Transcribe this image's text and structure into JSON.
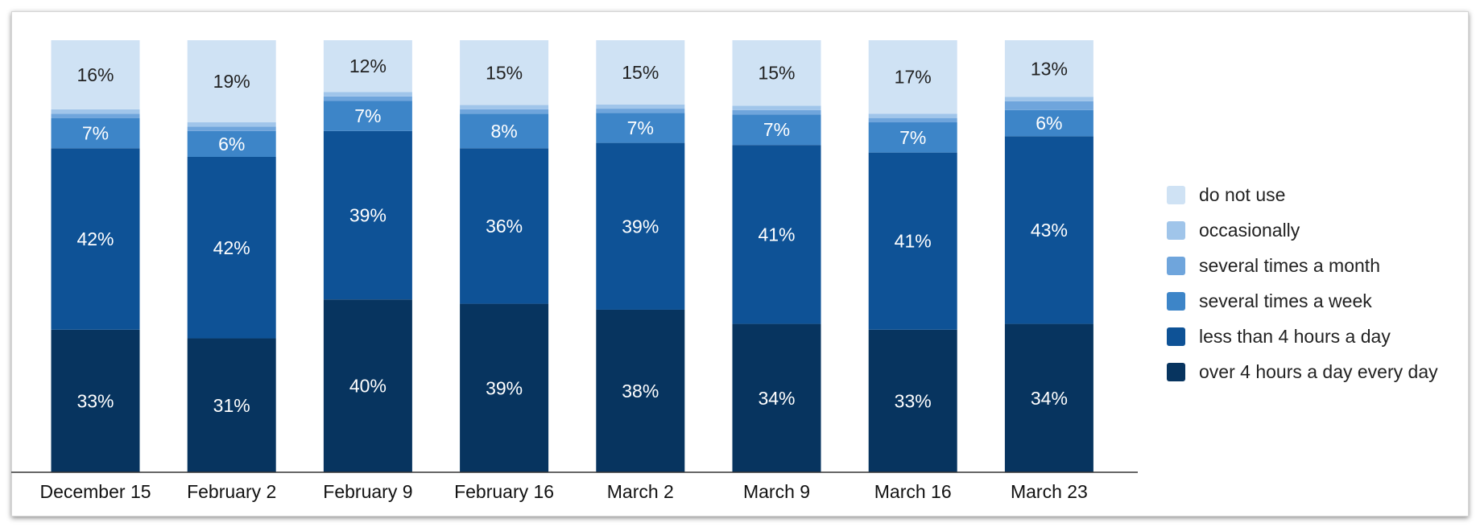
{
  "chart_data": {
    "type": "bar",
    "stacked": true,
    "normalized": true,
    "categories": [
      "December 15",
      "February 2",
      "February 9",
      "February 16",
      "March 2",
      "March 9",
      "March 16",
      "March 23"
    ],
    "series": [
      {
        "name": "over 4 hours a day every day",
        "color": "#07345f",
        "values": [
          33,
          31,
          40,
          39,
          38,
          34,
          33,
          34
        ]
      },
      {
        "name": "less than 4 hours a day",
        "color": "#0e5296",
        "values": [
          42,
          42,
          39,
          36,
          39,
          41,
          41,
          43
        ]
      },
      {
        "name": "several times a week",
        "color": "#3d85c8",
        "values": [
          7,
          6,
          7,
          8,
          7,
          7,
          7,
          6
        ]
      },
      {
        "name": "several times a month",
        "color": "#6fa5dc",
        "values": [
          1,
          1,
          1,
          1,
          1,
          1,
          1,
          2
        ]
      },
      {
        "name": "occasionally",
        "color": "#a0c5ea",
        "values": [
          1,
          1,
          1,
          1,
          1,
          1,
          1,
          1
        ]
      },
      {
        "name": "do not use",
        "color": "#cfe2f4",
        "values": [
          16,
          19,
          12,
          15,
          15,
          15,
          17,
          13
        ]
      }
    ],
    "segment_labels": [
      [
        "33%",
        "31%",
        "40%",
        "39%",
        "38%",
        "34%",
        "33%",
        "34%"
      ],
      [
        "42%",
        "42%",
        "39%",
        "36%",
        "39%",
        "41%",
        "41%",
        "43%"
      ],
      [
        "7%",
        "6%",
        "7%",
        "8%",
        "7%",
        "7%",
        "7%",
        "6%"
      ],
      [
        "",
        "",
        "",
        "",
        "",
        "",
        "",
        ""
      ],
      [
        "",
        "",
        "",
        "",
        "",
        "",
        "",
        ""
      ],
      [
        "16%",
        "19%",
        "12%",
        "15%",
        "15%",
        "15%",
        "17%",
        "13%"
      ]
    ],
    "legend_order": [
      "do not use",
      "occasionally",
      "several times a month",
      "several times a week",
      "less than 4 hours a day",
      "over 4 hours a day every day"
    ],
    "legend_position": "right",
    "ylim": [
      0,
      100
    ],
    "grid": false
  }
}
